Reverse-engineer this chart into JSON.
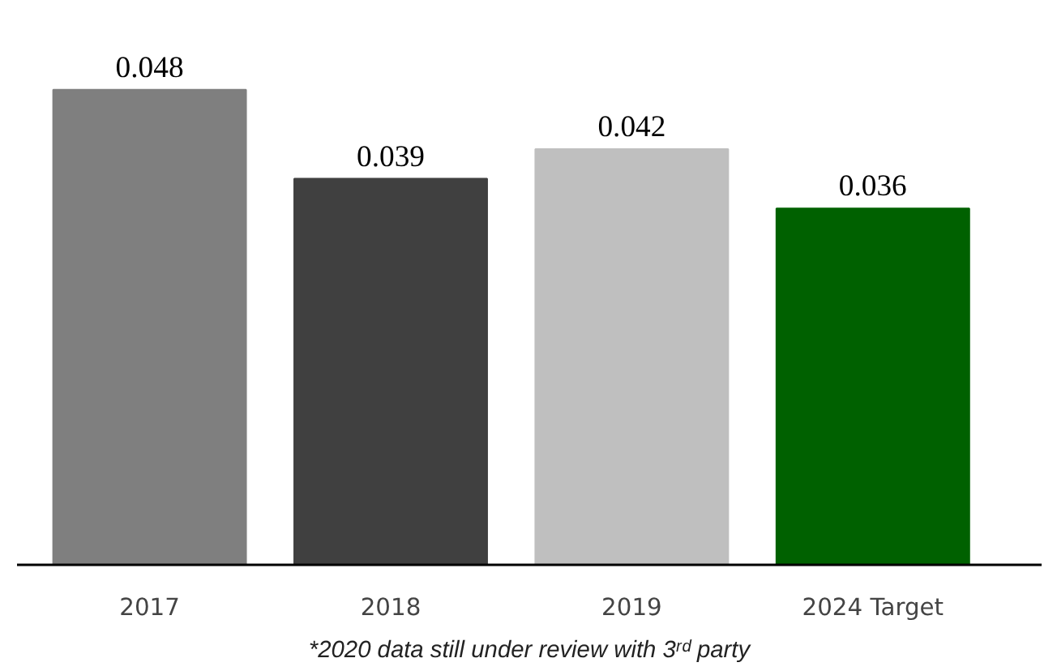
{
  "chart_data": {
    "type": "bar",
    "categories": [
      "2017",
      "2018",
      "2019",
      "2024 Target"
    ],
    "values": [
      0.048,
      0.039,
      0.042,
      0.036
    ],
    "colors": [
      "#7f7f7f",
      "#404040",
      "#bfbfbf",
      "#006100"
    ],
    "data_labels": true,
    "annotations": [
      "*2020 data still under review with 3ʳᵈ party"
    ]
  }
}
